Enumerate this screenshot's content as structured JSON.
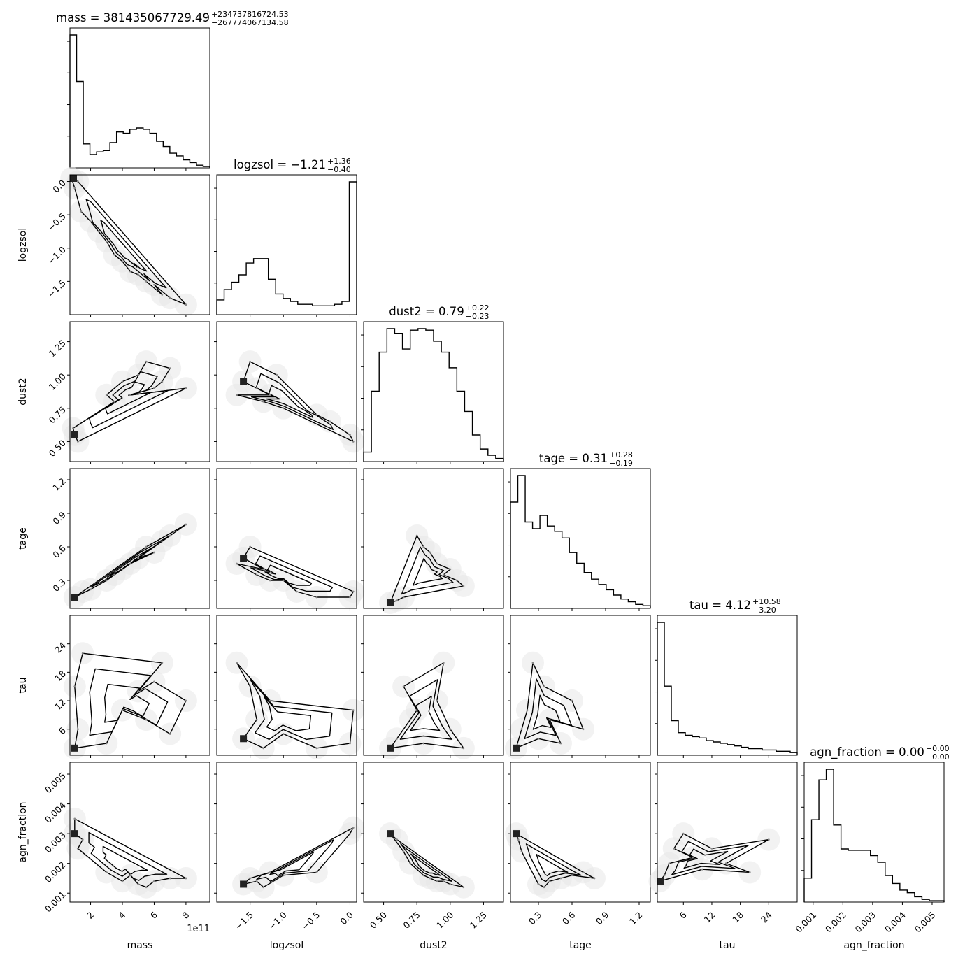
{
  "chart_data": {
    "type": "corner",
    "parameters": [
      {
        "name": "mass",
        "label": "mass",
        "range": [
          70000000000.0,
          950000000000.0
        ],
        "ticks": [
          200000000000.0,
          400000000000.0,
          600000000000.0,
          800000000000.0
        ],
        "tick_labels": [
          "2",
          "4",
          "6",
          "8"
        ],
        "offset_label": "1e11",
        "title": {
          "main": "mass = 381435067729.49",
          "upper": "+234737816724.53",
          "lower": "−267774067134.58"
        }
      },
      {
        "name": "logzsol",
        "label": "logzsol",
        "range": [
          -2.0,
          0.1
        ],
        "ticks": [
          -1.5,
          -1.0,
          -0.5,
          0.0
        ],
        "tick_labels": [
          "−1.5",
          "−1.0",
          "−0.5",
          "0.0"
        ],
        "title": {
          "main": "logzsol = −1.21",
          "upper": "+1.36",
          "lower": "−0.40"
        }
      },
      {
        "name": "dust2",
        "label": "dust2",
        "range": [
          0.35,
          1.4
        ],
        "ticks": [
          0.5,
          0.75,
          1.0,
          1.25
        ],
        "tick_labels": [
          "0.50",
          "0.75",
          "1.00",
          "1.25"
        ],
        "title": {
          "main": "dust2 = 0.79",
          "upper": "+0.22",
          "lower": "−0.23"
        }
      },
      {
        "name": "tage",
        "label": "tage",
        "range": [
          0.05,
          1.3
        ],
        "ticks": [
          0.3,
          0.6,
          0.9,
          1.2
        ],
        "tick_labels": [
          "0.3",
          "0.6",
          "0.9",
          "1.2"
        ],
        "title": {
          "main": "tage = 0.31",
          "upper": "+0.28",
          "lower": "−0.19"
        }
      },
      {
        "name": "tau",
        "label": "tau",
        "range": [
          0.5,
          30.0
        ],
        "ticks": [
          6,
          12,
          18,
          24
        ],
        "tick_labels": [
          "6",
          "12",
          "18",
          "24"
        ],
        "title": {
          "main": "tau = 4.12",
          "upper": "+10.58",
          "lower": "−3.20"
        }
      },
      {
        "name": "agn_fraction",
        "label": "agn_fraction",
        "range": [
          0.0007,
          0.0054
        ],
        "ticks": [
          0.001,
          0.002,
          0.003,
          0.004,
          0.005
        ],
        "tick_labels": [
          "0.001",
          "0.002",
          "0.003",
          "0.004",
          "0.005"
        ],
        "title": {
          "main": "agn_fraction = 0.00",
          "upper": "+0.00",
          "lower": "−0.00"
        }
      }
    ],
    "histograms": [
      [
        100,
        65,
        18,
        10,
        12,
        13,
        19,
        27,
        26,
        29,
        30,
        29,
        26,
        20,
        16,
        11,
        9,
        6,
        4,
        2,
        1
      ],
      [
        10,
        17,
        22,
        27,
        35,
        38,
        38,
        24,
        14,
        11,
        9,
        7,
        7,
        6,
        6,
        6,
        7,
        9,
        90
      ],
      [
        6,
        45,
        70,
        85,
        82,
        72,
        84,
        85,
        84,
        77,
        70,
        60,
        45,
        32,
        17,
        8,
        4,
        2
      ],
      [
        80,
        100,
        65,
        60,
        70,
        62,
        58,
        53,
        42,
        34,
        27,
        22,
        18,
        14,
        10,
        7,
        5,
        3,
        2
      ],
      [
        100,
        52,
        26,
        17,
        15,
        14,
        13,
        11,
        10,
        9,
        8,
        7,
        6,
        5,
        5,
        4,
        4,
        3,
        3,
        2
      ],
      [
        18,
        62,
        92,
        100,
        58,
        40,
        39,
        39,
        39,
        35,
        30,
        20,
        14,
        9,
        7,
        4,
        2,
        1,
        1
      ]
    ],
    "pair_points": [
      {
        "x": 0,
        "y": 1,
        "points": [
          [
            80000000000.0,
            0.05
          ],
          [
            120000000000.0,
            0.0
          ],
          [
            140000000000.0,
            -0.45
          ],
          [
            200000000000.0,
            -0.6
          ],
          [
            300000000000.0,
            -0.9
          ],
          [
            400000000000.0,
            -1.2
          ],
          [
            500000000000.0,
            -1.4
          ],
          [
            600000000000.0,
            -1.55
          ],
          [
            700000000000.0,
            -1.75
          ],
          [
            350000000000.0,
            -1.1
          ],
          [
            450000000000.0,
            -1.35
          ],
          [
            550000000000.0,
            -1.5
          ],
          [
            650000000000.0,
            -1.7
          ],
          [
            800000000000.0,
            -1.85
          ],
          [
            250000000000.0,
            -0.75
          ],
          [
            100000000000.0,
            -0.1
          ]
        ]
      },
      {
        "x": 0,
        "y": 2,
        "points": [
          [
            100000000000.0,
            0.55
          ],
          [
            90000000000.0,
            0.6
          ],
          [
            120000000000.0,
            0.5
          ],
          [
            300000000000.0,
            0.85
          ],
          [
            400000000000.0,
            0.95
          ],
          [
            500000000000.0,
            1.0
          ],
          [
            600000000000.0,
            0.9
          ],
          [
            700000000000.0,
            1.05
          ],
          [
            450000000000.0,
            0.85
          ],
          [
            550000000000.0,
            1.1
          ],
          [
            350000000000.0,
            0.8
          ],
          [
            650000000000.0,
            0.95
          ],
          [
            800000000000.0,
            0.9
          ]
        ]
      },
      {
        "x": 0,
        "y": 3,
        "points": [
          [
            100000000000.0,
            0.15
          ],
          [
            150000000000.0,
            0.2
          ],
          [
            200000000000.0,
            0.22
          ],
          [
            300000000000.0,
            0.3
          ],
          [
            400000000000.0,
            0.4
          ],
          [
            500000000000.0,
            0.5
          ],
          [
            600000000000.0,
            0.55
          ],
          [
            700000000000.0,
            0.7
          ],
          [
            550000000000.0,
            0.6
          ],
          [
            450000000000.0,
            0.45
          ],
          [
            650000000000.0,
            0.65
          ],
          [
            800000000000.0,
            0.8
          ],
          [
            350000000000.0,
            0.35
          ]
        ]
      },
      {
        "x": 0,
        "y": 4,
        "points": [
          [
            100000000000.0,
            2
          ],
          [
            120000000000.0,
            6
          ],
          [
            100000000000.0,
            15
          ],
          [
            150000000000.0,
            22
          ],
          [
            400000000000.0,
            10
          ],
          [
            500000000000.0,
            14
          ],
          [
            600000000000.0,
            16
          ],
          [
            550000000000.0,
            8
          ],
          [
            650000000000.0,
            20
          ],
          [
            300000000000.0,
            3
          ],
          [
            700000000000.0,
            5
          ],
          [
            800000000000.0,
            12
          ]
        ]
      },
      {
        "x": 0,
        "y": 5,
        "points": [
          [
            100000000000.0,
            0.003
          ],
          [
            120000000000.0,
            0.0025
          ],
          [
            100000000000.0,
            0.0035
          ],
          [
            150000000000.0,
            0.0028
          ],
          [
            300000000000.0,
            0.0017
          ],
          [
            400000000000.0,
            0.0014
          ],
          [
            500000000000.0,
            0.0013
          ],
          [
            600000000000.0,
            0.0014
          ],
          [
            700000000000.0,
            0.0015
          ],
          [
            550000000000.0,
            0.0012
          ],
          [
            450000000000.0,
            0.0016
          ],
          [
            800000000000.0,
            0.0015
          ]
        ]
      },
      {
        "x": 1,
        "y": 2,
        "points": [
          [
            -1.6,
            0.95
          ],
          [
            -1.4,
            0.9
          ],
          [
            -1.2,
            0.85
          ],
          [
            -1.5,
            1.1
          ],
          [
            -1.3,
            0.8
          ],
          [
            -1.0,
            0.75
          ],
          [
            -1.7,
            0.85
          ],
          [
            -1.1,
            1.0
          ],
          [
            0.0,
            0.55
          ],
          [
            0.05,
            0.5
          ],
          [
            -0.5,
            0.7
          ],
          [
            -0.3,
            0.65
          ]
        ]
      },
      {
        "x": 1,
        "y": 3,
        "points": [
          [
            -1.6,
            0.5
          ],
          [
            -1.4,
            0.35
          ],
          [
            -1.3,
            0.4
          ],
          [
            -1.5,
            0.6
          ],
          [
            -1.2,
            0.3
          ],
          [
            -1.0,
            0.3
          ],
          [
            -1.7,
            0.45
          ],
          [
            -0.8,
            0.2
          ],
          [
            0.0,
            0.15
          ],
          [
            0.05,
            0.2
          ],
          [
            -0.5,
            0.15
          ]
        ]
      },
      {
        "x": 1,
        "y": 4,
        "points": [
          [
            -1.6,
            4
          ],
          [
            -1.4,
            8
          ],
          [
            -1.5,
            15
          ],
          [
            -1.3,
            2
          ],
          [
            -1.2,
            12
          ],
          [
            -1.0,
            5
          ],
          [
            -0.5,
            2
          ],
          [
            0.0,
            3
          ],
          [
            0.05,
            10
          ],
          [
            -1.7,
            20
          ]
        ]
      },
      {
        "x": 1,
        "y": 5,
        "points": [
          [
            -1.6,
            0.0013
          ],
          [
            -1.4,
            0.0014
          ],
          [
            -1.3,
            0.0012
          ],
          [
            -1.5,
            0.0015
          ],
          [
            -1.2,
            0.0017
          ],
          [
            -1.0,
            0.0016
          ],
          [
            0.0,
            0.003
          ],
          [
            0.05,
            0.0032
          ],
          [
            -0.5,
            0.0017
          ]
        ]
      },
      {
        "x": 2,
        "y": 3,
        "points": [
          [
            0.55,
            0.1
          ],
          [
            0.6,
            0.12
          ],
          [
            0.65,
            0.15
          ],
          [
            0.85,
            0.55
          ],
          [
            0.9,
            0.45
          ],
          [
            0.95,
            0.35
          ],
          [
            1.0,
            0.4
          ],
          [
            0.8,
            0.6
          ],
          [
            1.05,
            0.3
          ],
          [
            0.75,
            0.7
          ],
          [
            1.1,
            0.25
          ]
        ]
      },
      {
        "x": 2,
        "y": 4,
        "points": [
          [
            0.55,
            2
          ],
          [
            0.6,
            4
          ],
          [
            0.7,
            8
          ],
          [
            0.8,
            3
          ],
          [
            0.9,
            12
          ],
          [
            1.0,
            6
          ],
          [
            1.1,
            2
          ],
          [
            0.65,
            15
          ],
          [
            0.95,
            20
          ],
          [
            0.75,
            10
          ]
        ]
      },
      {
        "x": 2,
        "y": 5,
        "points": [
          [
            0.55,
            0.003
          ],
          [
            0.6,
            0.0028
          ],
          [
            0.65,
            0.0024
          ],
          [
            0.7,
            0.002
          ],
          [
            0.8,
            0.0016
          ],
          [
            0.9,
            0.0014
          ],
          [
            1.0,
            0.0013
          ],
          [
            1.1,
            0.0012
          ],
          [
            0.85,
            0.0015
          ],
          [
            0.95,
            0.0014
          ]
        ]
      },
      {
        "x": 3,
        "y": 4,
        "points": [
          [
            0.1,
            2
          ],
          [
            0.15,
            6
          ],
          [
            0.2,
            10
          ],
          [
            0.3,
            4
          ],
          [
            0.4,
            8
          ],
          [
            0.5,
            3
          ],
          [
            0.6,
            12
          ],
          [
            0.35,
            15
          ],
          [
            0.25,
            20
          ],
          [
            0.7,
            6
          ]
        ]
      },
      {
        "x": 3,
        "y": 5,
        "points": [
          [
            0.1,
            0.003
          ],
          [
            0.12,
            0.0028
          ],
          [
            0.15,
            0.0024
          ],
          [
            0.3,
            0.0013
          ],
          [
            0.35,
            0.0012
          ],
          [
            0.4,
            0.0014
          ],
          [
            0.5,
            0.0015
          ],
          [
            0.6,
            0.0016
          ],
          [
            0.7,
            0.0017
          ],
          [
            0.8,
            0.0015
          ]
        ]
      },
      {
        "x": 4,
        "y": 5,
        "points": [
          [
            1,
            0.0014
          ],
          [
            2,
            0.0016
          ],
          [
            3,
            0.002
          ],
          [
            4,
            0.0025
          ],
          [
            6,
            0.003
          ],
          [
            8,
            0.0022
          ],
          [
            10,
            0.0018
          ],
          [
            12,
            0.0025
          ],
          [
            15,
            0.002
          ],
          [
            20,
            0.0017
          ],
          [
            24,
            0.0028
          ]
        ]
      }
    ]
  }
}
